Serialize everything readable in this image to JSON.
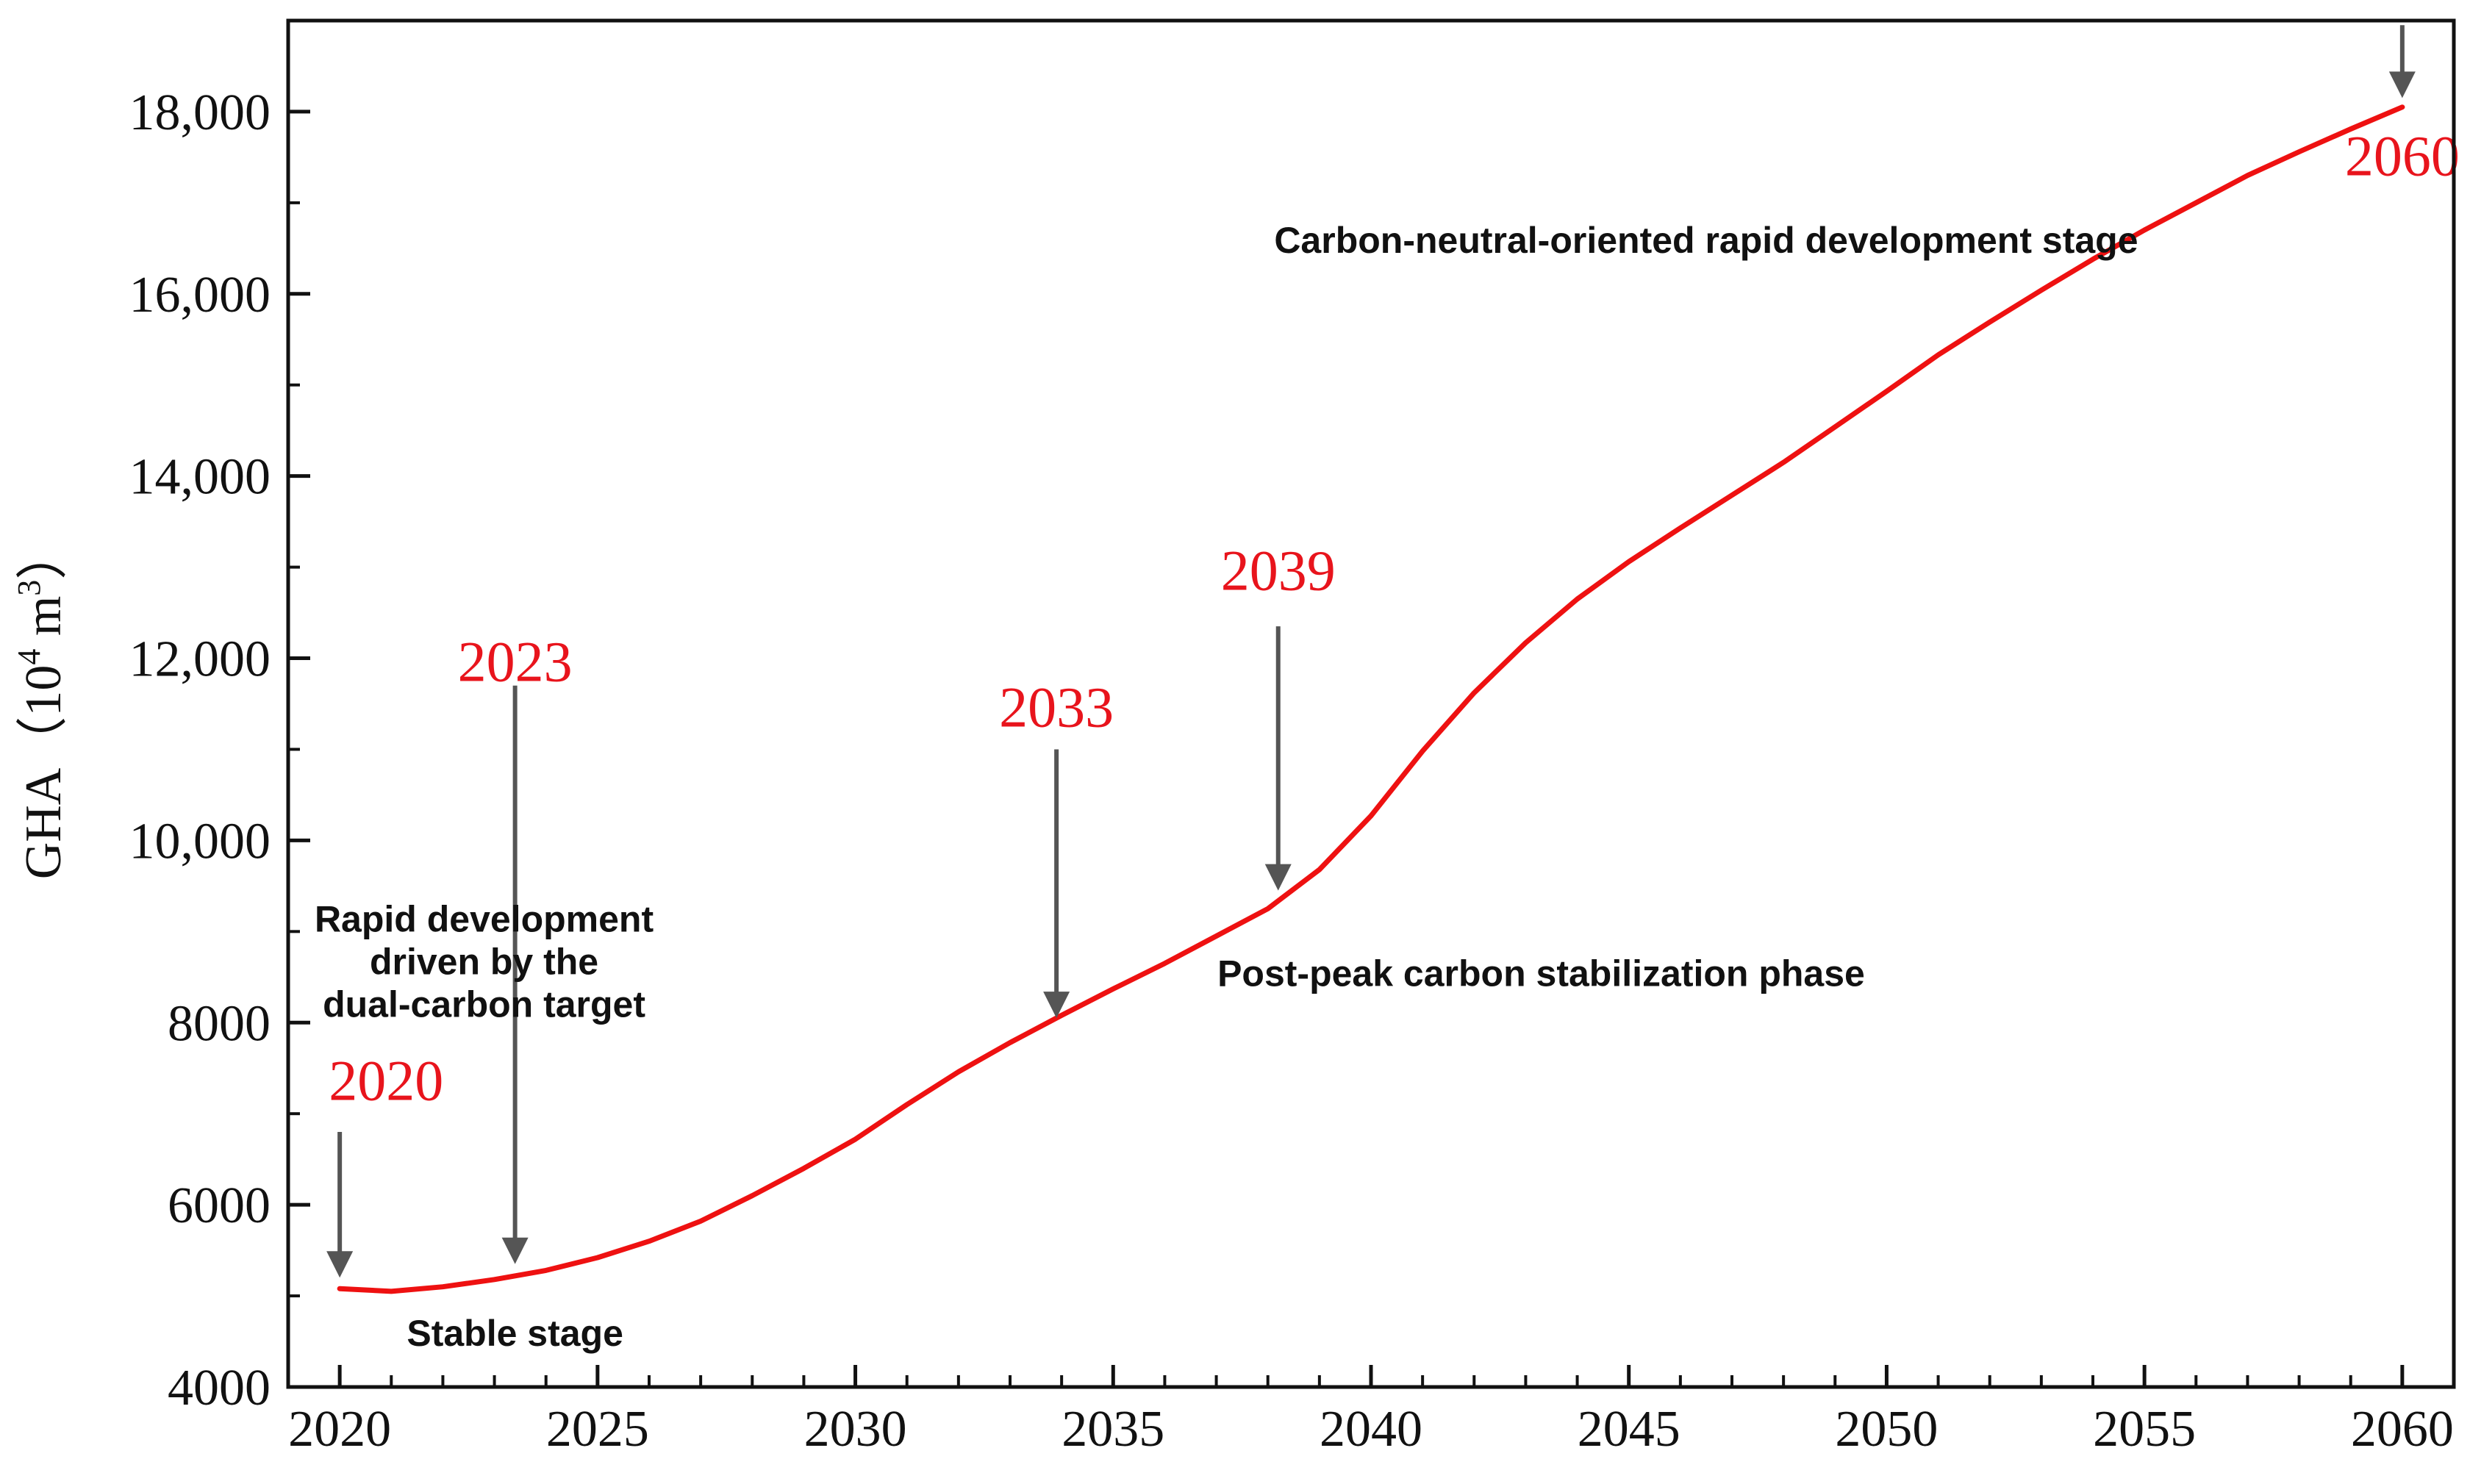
{
  "chart_data": {
    "type": "line",
    "title": "",
    "xlabel": "",
    "ylabel": {
      "main": "GHA",
      "open": "（",
      "base": "10",
      "exp": "4",
      "unit": " m",
      "unit_exp": "3",
      "close": "）"
    },
    "xlim": [
      2019,
      2061
    ],
    "ylim": [
      4000,
      19000
    ],
    "x_ticks": [
      2020,
      2025,
      2030,
      2035,
      2040,
      2045,
      2050,
      2055,
      2060
    ],
    "x_tick_labels": [
      "2020",
      "2025",
      "2030",
      "2035",
      "2040",
      "2045",
      "2050",
      "2055",
      "2060"
    ],
    "x_minor_ticks": [
      2021,
      2022,
      2023,
      2024,
      2026,
      2027,
      2028,
      2029,
      2031,
      2032,
      2033,
      2034,
      2036,
      2037,
      2038,
      2039,
      2041,
      2042,
      2043,
      2044,
      2046,
      2047,
      2048,
      2049,
      2051,
      2052,
      2053,
      2054,
      2056,
      2057,
      2058,
      2059
    ],
    "y_ticks": [
      4000,
      6000,
      8000,
      10000,
      12000,
      14000,
      16000,
      18000
    ],
    "y_tick_labels": [
      "4000",
      "6000",
      "8000",
      "10,000",
      "12,000",
      "14,000",
      "16,000",
      "18,000"
    ],
    "y_minor_ticks": [
      5000,
      7000,
      9000,
      11000,
      13000,
      15000,
      17000
    ],
    "line_color": "#ee1111",
    "series": [
      {
        "name": "GHA",
        "x": [
          2020,
          2021,
          2022,
          2023,
          2024,
          2025,
          2026,
          2027,
          2028,
          2029,
          2030,
          2031,
          2032,
          2033,
          2034,
          2035,
          2036,
          2037,
          2038,
          2039,
          2040,
          2041,
          2042,
          2043,
          2044,
          2045,
          2046,
          2047,
          2048,
          2049,
          2050,
          2051,
          2052,
          2053,
          2054,
          2055,
          2056,
          2057,
          2058,
          2059,
          2060
        ],
        "values": [
          5080,
          5050,
          5100,
          5180,
          5280,
          5420,
          5600,
          5820,
          6100,
          6400,
          6720,
          7100,
          7460,
          7780,
          8080,
          8370,
          8650,
          8950,
          9250,
          9680,
          10270,
          10980,
          11620,
          12170,
          12650,
          13060,
          13430,
          13790,
          14150,
          14540,
          14930,
          15330,
          15690,
          16040,
          16380,
          16700,
          17000,
          17300,
          17560,
          17810,
          18050
        ]
      }
    ],
    "markers": [
      {
        "year_label": "2020",
        "arrow_x": 2020,
        "arrow_y_from": 6800,
        "arrow_y_to": 5200,
        "label_x": 2020.9,
        "label_y": 7150
      },
      {
        "year_label": "2023",
        "arrow_x": 2023.4,
        "arrow_y_from": 11700,
        "arrow_y_to": 5350,
        "label_x": 2023.4,
        "label_y": 11750
      },
      {
        "year_label": "2033",
        "arrow_x": 2033.9,
        "arrow_y_from": 11000,
        "arrow_y_to": 8050,
        "label_x": 2033.9,
        "label_y": 11250
      },
      {
        "year_label": "2039",
        "arrow_x": 2038.2,
        "arrow_y_from": 12350,
        "arrow_y_to": 9450,
        "label_x": 2038.2,
        "label_y": 12750
      },
      {
        "year_label": "2060",
        "arrow_x": 2060,
        "arrow_y_from": 18950,
        "arrow_y_to": 18150,
        "label_x": 2060,
        "label_y": 17300
      }
    ],
    "marker_year_color": "#e8141c",
    "arrow_color": "#555555",
    "annotations": [
      {
        "id": "stage-stable",
        "x": 2023.4,
        "y": 4450,
        "lines": [
          "Stable stage"
        ]
      },
      {
        "id": "stage-rapid",
        "x": 2022.8,
        "y": 9000,
        "lines": [
          "Rapid development",
          "driven by the",
          "dual-carbon target"
        ]
      },
      {
        "id": "stage-post-peak",
        "x": 2043.3,
        "y": 8400,
        "lines": [
          "Post-peak carbon stabilization phase"
        ]
      },
      {
        "id": "stage-carbon-neutral",
        "x": 2046.5,
        "y": 16450,
        "lines": [
          "Carbon-neutral-oriented rapid development stage"
        ]
      }
    ],
    "grid": false
  }
}
